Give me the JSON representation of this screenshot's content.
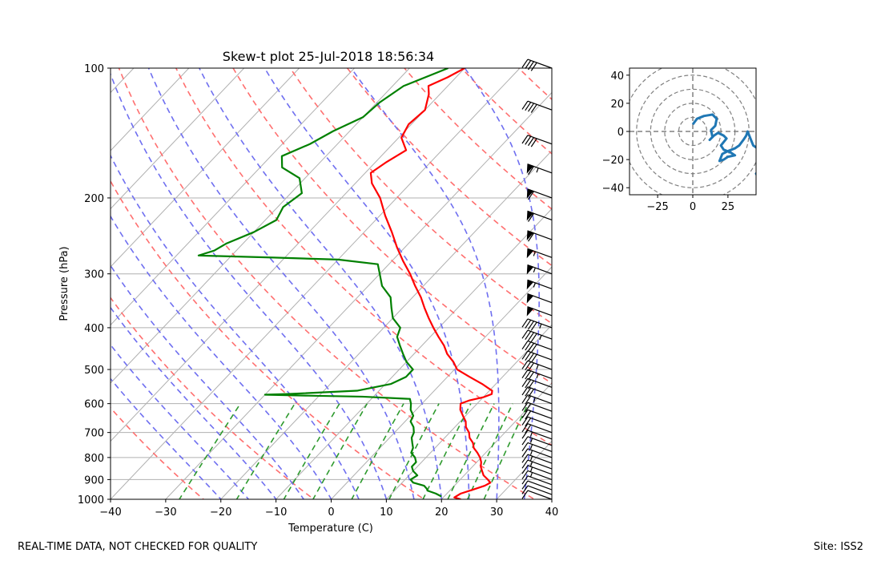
{
  "colors": {
    "temperature": "#ff0000",
    "dewpoint": "#008000",
    "dry_adiabat": "#ff6f6f",
    "moist_adiabat": "#6f6ff0",
    "mixing_ratio": "#2e9a2e",
    "hodograph": "#1f77b4",
    "grid": "#b0b0b0"
  },
  "footer": {
    "quality_note": "REAL-TIME DATA, NOT CHECKED FOR QUALITY",
    "site": "Site: ISS2"
  },
  "chart_data": [
    {
      "type": "line",
      "subtype": "skew-t",
      "title": "Skew-t plot 25-Jul-2018 18:56:34",
      "xlabel": "Temperature (C)",
      "ylabel": "Pressure (hPa)",
      "xlim": [
        -40,
        40
      ],
      "ylim": [
        1000,
        100
      ],
      "yscale": "log",
      "x_ticks": [
        -40,
        -30,
        -20,
        -10,
        0,
        10,
        20,
        30,
        40
      ],
      "y_ticks": [
        1000,
        900,
        800,
        700,
        600,
        500,
        400,
        300,
        200,
        100
      ],
      "grid": true,
      "series": [
        {
          "name": "Temperature",
          "points": [
            [
              1000,
              23.5
            ],
            [
              990,
              22.0
            ],
            [
              970,
              22.5
            ],
            [
              950,
              24.0
            ],
            [
              930,
              25.5
            ],
            [
              915,
              26.0
            ],
            [
              900,
              25.0
            ],
            [
              880,
              23.5
            ],
            [
              860,
              22.5
            ],
            [
              840,
              21.5
            ],
            [
              820,
              20.8
            ],
            [
              800,
              19.8
            ],
            [
              780,
              18.5
            ],
            [
              760,
              17.0
            ],
            [
              740,
              16.0
            ],
            [
              720,
              14.5
            ],
            [
              700,
              13.5
            ],
            [
              680,
              12.0
            ],
            [
              660,
              11.0
            ],
            [
              640,
              9.5
            ],
            [
              620,
              8.0
            ],
            [
              600,
              7.0
            ],
            [
              590,
              8.0
            ],
            [
              580,
              10.0
            ],
            [
              570,
              11.0
            ],
            [
              560,
              10.5
            ],
            [
              550,
              9.0
            ],
            [
              540,
              7.5
            ],
            [
              520,
              4.0
            ],
            [
              500,
              0.5
            ],
            [
              480,
              -1.5
            ],
            [
              460,
              -4.0
            ],
            [
              440,
              -6.0
            ],
            [
              420,
              -8.5
            ],
            [
              400,
              -11.0
            ],
            [
              380,
              -13.5
            ],
            [
              360,
              -16.0
            ],
            [
              340,
              -18.5
            ],
            [
              320,
              -21.5
            ],
            [
              300,
              -24.5
            ],
            [
              280,
              -28.0
            ],
            [
              260,
              -31.5
            ],
            [
              240,
              -35.0
            ],
            [
              220,
              -39.0
            ],
            [
              200,
              -43.0
            ],
            [
              185,
              -47.0
            ],
            [
              175,
              -49.0
            ],
            [
              165,
              -48.0
            ],
            [
              155,
              -46.5
            ],
            [
              145,
              -49.5
            ],
            [
              135,
              -50.5
            ],
            [
              125,
              -50.0
            ],
            [
              115,
              -52.0
            ],
            [
              110,
              -53.5
            ],
            [
              105,
              -51.5
            ],
            [
              100,
              -50.0
            ]
          ]
        },
        {
          "name": "Dewpoint",
          "points": [
            [
              985,
              19.5
            ],
            [
              970,
              18.0
            ],
            [
              955,
              16.0
            ],
            [
              945,
              15.5
            ],
            [
              930,
              14.5
            ],
            [
              915,
              12.0
            ],
            [
              900,
              11.0
            ],
            [
              880,
              11.5
            ],
            [
              860,
              10.0
            ],
            [
              840,
              9.0
            ],
            [
              820,
              9.0
            ],
            [
              800,
              8.0
            ],
            [
              780,
              6.5
            ],
            [
              760,
              6.0
            ],
            [
              740,
              5.0
            ],
            [
              720,
              4.0
            ],
            [
              700,
              3.5
            ],
            [
              680,
              2.5
            ],
            [
              660,
              1.0
            ],
            [
              640,
              0.5
            ],
            [
              620,
              -1.0
            ],
            [
              600,
              -2.0
            ],
            [
              585,
              -3.0
            ],
            [
              578,
              -12.0
            ],
            [
              575,
              -22.0
            ],
            [
              572,
              -30.0
            ],
            [
              570,
              -26.0
            ],
            [
              560,
              -14.0
            ],
            [
              540,
              -9.0
            ],
            [
              520,
              -7.5
            ],
            [
              500,
              -7.5
            ],
            [
              480,
              -10.0
            ],
            [
              460,
              -12.0
            ],
            [
              440,
              -14.0
            ],
            [
              420,
              -16.0
            ],
            [
              400,
              -17.0
            ],
            [
              380,
              -20.0
            ],
            [
              360,
              -22.0
            ],
            [
              340,
              -24.0
            ],
            [
              320,
              -27.5
            ],
            [
              300,
              -30.0
            ],
            [
              285,
              -32.0
            ],
            [
              278,
              -40.0
            ],
            [
              275,
              -52.0
            ],
            [
              272,
              -66.0
            ],
            [
              265,
              -64.0
            ],
            [
              255,
              -63.0
            ],
            [
              240,
              -60.0
            ],
            [
              225,
              -58.0
            ],
            [
              210,
              -59.0
            ],
            [
              195,
              -58.0
            ],
            [
              180,
              -61.0
            ],
            [
              170,
              -66.0
            ],
            [
              160,
              -68.0
            ],
            [
              150,
              -65.0
            ],
            [
              140,
              -63.0
            ],
            [
              130,
              -60.0
            ],
            [
              120,
              -59.5
            ],
            [
              110,
              -58.0
            ],
            [
              100,
              -53.0
            ]
          ]
        }
      ],
      "wind_barbs": "wind barbs shown along right edge from 1000 to 100 hPa"
    },
    {
      "type": "line",
      "subtype": "hodograph",
      "title": "",
      "xlim": [
        -45,
        45
      ],
      "ylim": [
        -45,
        45
      ],
      "x_ticks": [
        -25,
        0,
        25
      ],
      "y_ticks": [
        40,
        20,
        0,
        -20,
        -40
      ],
      "range_rings": [
        10,
        20,
        30,
        40,
        50
      ],
      "series": [
        {
          "name": "Wind",
          "points": [
            [
              0,
              5
            ],
            [
              3,
              9
            ],
            [
              8,
              11
            ],
            [
              14,
              12
            ],
            [
              17,
              9
            ],
            [
              16,
              4
            ],
            [
              13,
              1
            ],
            [
              14,
              -4
            ],
            [
              12,
              -6
            ],
            [
              15,
              -3
            ],
            [
              18,
              -1
            ],
            [
              22,
              -3
            ],
            [
              24,
              -5
            ],
            [
              20,
              -10
            ],
            [
              22,
              -13
            ],
            [
              27,
              -15
            ],
            [
              30,
              -17
            ],
            [
              25,
              -18
            ],
            [
              22,
              -20
            ],
            [
              19,
              -21
            ],
            [
              21,
              -16
            ],
            [
              25,
              -14
            ],
            [
              30,
              -12
            ],
            [
              33,
              -10
            ],
            [
              36,
              -6
            ],
            [
              38,
              -3
            ],
            [
              39,
              0
            ],
            [
              41,
              -5
            ],
            [
              43,
              -10
            ],
            [
              46,
              -12
            ],
            [
              48,
              -15
            ],
            [
              50,
              -20
            ],
            [
              48,
              -26
            ],
            [
              45,
              -30
            ],
            [
              48,
              -35
            ],
            [
              52,
              -40
            ]
          ]
        }
      ]
    }
  ]
}
